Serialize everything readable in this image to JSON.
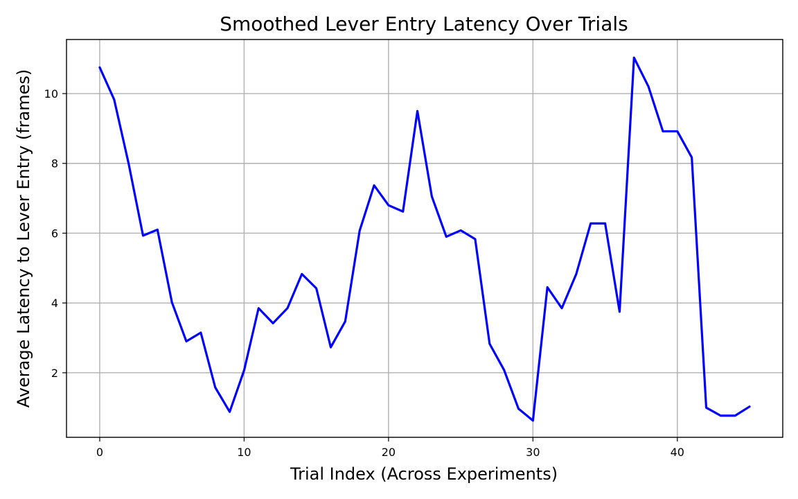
{
  "chart_data": {
    "type": "line",
    "title": "Smoothed Lever Entry Latency Over Trials",
    "xlabel": "Trial Index (Across Experiments)",
    "ylabel": "Average Latency to Lever Entry (frames)",
    "xlim": [
      -2.3,
      47.3
    ],
    "ylim": [
      0.15,
      11.55
    ],
    "xticks": [
      0,
      10,
      20,
      30,
      40
    ],
    "yticks": [
      2,
      4,
      6,
      8,
      10
    ],
    "grid": true,
    "legend": "none",
    "series": [
      {
        "color": "#0000ff",
        "x": [
          0,
          1,
          2,
          3,
          4,
          5,
          6,
          7,
          8,
          9,
          10,
          11,
          12,
          13,
          14,
          15,
          16,
          17,
          18,
          19,
          20,
          21,
          22,
          23,
          24,
          25,
          26,
          27,
          28,
          29,
          30,
          31,
          32,
          33,
          34,
          35,
          36,
          37,
          38,
          39,
          40,
          41,
          42,
          43,
          44,
          45
        ],
        "y": [
          10.75,
          9.83,
          8.0,
          5.93,
          6.1,
          4.02,
          2.9,
          3.15,
          1.58,
          0.88,
          2.07,
          3.85,
          3.42,
          3.85,
          4.83,
          4.42,
          2.73,
          3.47,
          6.07,
          7.37,
          6.8,
          6.62,
          9.5,
          7.05,
          5.9,
          6.08,
          5.83,
          2.83,
          2.08,
          0.97,
          0.63,
          4.45,
          3.85,
          4.83,
          6.28,
          6.28,
          3.75,
          11.03,
          10.2,
          8.92,
          8.92,
          8.17,
          1.0,
          0.77,
          0.77,
          1.03
        ]
      }
    ]
  }
}
